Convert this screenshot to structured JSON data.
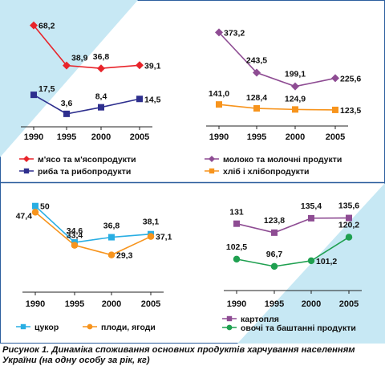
{
  "caption": "Рисунок 1. Динаміка споживання основних продуктів харчування населенням України (на одну особу за рік, кг)",
  "colors": {
    "panel_bg": "#c7e8f4",
    "border": "#2c5e9e",
    "red": "#e8232a",
    "navy": "#2e2f8e",
    "purple": "#8e4c93",
    "orange": "#f7941d",
    "cyan": "#29aee3",
    "green": "#1fa050"
  },
  "chart_data": [
    {
      "type": "line",
      "categories": [
        "1990",
        "1995",
        "2000",
        "2005"
      ],
      "ylim": [
        0,
        75
      ],
      "series": [
        {
          "name": "м'ясо та м'ясопродукти",
          "values": [
            68.2,
            38.9,
            36.8,
            39.1
          ],
          "labels": [
            "68,2",
            "38,9",
            "36,8",
            "39,1"
          ],
          "color": "#e8232a",
          "marker": "diamond"
        },
        {
          "name": "риба та рибопродукти",
          "values": [
            17.5,
            3.6,
            8.4,
            14.5
          ],
          "labels": [
            "17,5",
            "3,6",
            "8,4",
            "14,5"
          ],
          "color": "#2e2f8e",
          "marker": "square"
        }
      ]
    },
    {
      "type": "line",
      "categories": [
        "1990",
        "1995",
        "2000",
        "2005"
      ],
      "ylim": [
        100,
        400
      ],
      "series": [
        {
          "name": "молоко та молочні продукти",
          "values": [
            373.2,
            243.5,
            199.1,
            225.6
          ],
          "labels": [
            "373,2",
            "243,5",
            "199,1",
            "225,6"
          ],
          "color": "#8e4c93",
          "marker": "diamond"
        },
        {
          "name": "хліб і хлібопродукти",
          "values": [
            141.0,
            128.4,
            124.9,
            123.5
          ],
          "labels": [
            "141,0",
            "128,4",
            "124,9",
            "123,5"
          ],
          "color": "#f7941d",
          "marker": "square"
        }
      ]
    },
    {
      "type": "line",
      "categories": [
        "1990",
        "1995",
        "2000",
        "2005"
      ],
      "ylim": [
        20,
        55
      ],
      "series": [
        {
          "name": "цукор",
          "values": [
            50,
            34.6,
            36.8,
            38.1
          ],
          "labels": [
            "50",
            "34,6",
            "36,8",
            "38,1"
          ],
          "color": "#29aee3",
          "marker": "square"
        },
        {
          "name": "плоди, ягоди",
          "values": [
            47.4,
            33.4,
            29.3,
            37.1
          ],
          "labels": [
            "47,4",
            "33,4",
            "29,3",
            "37,1"
          ],
          "color": "#f7941d",
          "marker": "circle"
        }
      ]
    },
    {
      "type": "line",
      "categories": [
        "1990",
        "1995",
        "2000",
        "2005"
      ],
      "ylim": [
        85,
        145
      ],
      "series": [
        {
          "name": "картопля",
          "values": [
            131,
            123.8,
            135.4,
            135.6
          ],
          "labels": [
            "131",
            "123,8",
            "135,4",
            "135,6"
          ],
          "color": "#8e4c93",
          "marker": "square"
        },
        {
          "name": "овочі та баштанні  продукти",
          "values": [
            102.5,
            96.7,
            101.2,
            120.2
          ],
          "labels": [
            "102,5",
            "96,7",
            "101,2",
            "120,2"
          ],
          "color": "#1fa050",
          "marker": "circle"
        }
      ]
    }
  ]
}
